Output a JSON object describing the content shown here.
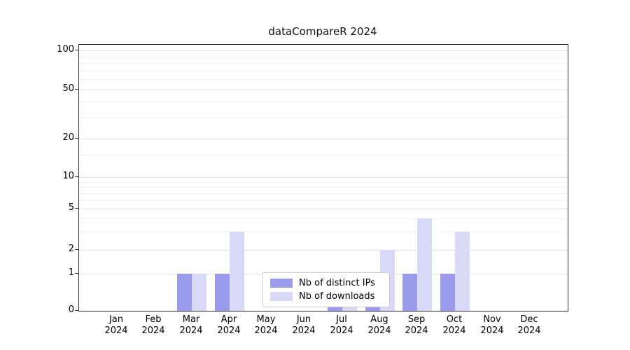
{
  "title": "dataCompareR 2024",
  "chart_data": {
    "type": "bar",
    "title": "dataCompareR 2024",
    "categories": [
      "Jan 2024",
      "Feb 2024",
      "Mar 2024",
      "Apr 2024",
      "May 2024",
      "Jun 2024",
      "Jul 2024",
      "Aug 2024",
      "Sep 2024",
      "Oct 2024",
      "Nov 2024",
      "Dec 2024"
    ],
    "series": [
      {
        "name": "Nb of distinct IPs",
        "color": "#9b9bee",
        "values": [
          0,
          0,
          1,
          1,
          0,
          0,
          1,
          1,
          1,
          1,
          0,
          0
        ]
      },
      {
        "name": "Nb of downloads",
        "color": "#d8d8f7",
        "values": [
          0,
          0,
          1,
          3,
          0,
          0,
          1,
          2,
          4,
          3,
          0,
          0
        ]
      }
    ],
    "yticks": [
      0,
      1,
      2,
      5,
      10,
      20,
      50,
      100
    ],
    "ylim": [
      0,
      100
    ],
    "xlabel": "",
    "ylabel": "",
    "scale": "log-like",
    "grid": true,
    "legend_position": "bottom-center-inside",
    "background_color": "#ffffff",
    "axis_color": "#2b2b2b"
  }
}
